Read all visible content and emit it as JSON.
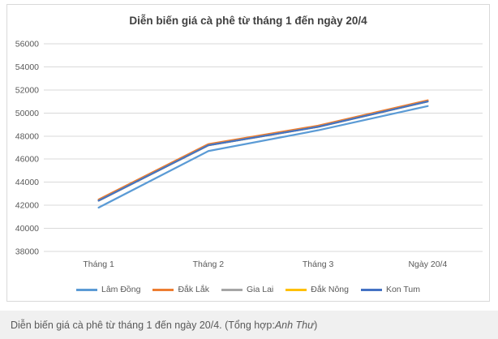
{
  "chart_data": {
    "type": "line",
    "title": "Diễn biến giá cà phê từ tháng 1 đến ngày 20/4",
    "categories": [
      "Tháng 1",
      "Tháng 2",
      "Tháng 3",
      "Ngày 20/4"
    ],
    "series": [
      {
        "name": "Lâm Đồng",
        "color": "#5B9BD5",
        "values": [
          41800,
          46700,
          48500,
          50600
        ]
      },
      {
        "name": "Đắk Lắk",
        "color": "#ED7D31",
        "values": [
          42500,
          47300,
          48900,
          51100
        ]
      },
      {
        "name": "Gia Lai",
        "color": "#A5A5A5",
        "values": [
          42400,
          47200,
          48800,
          51000
        ]
      },
      {
        "name": "Đắk Nông",
        "color": "#FFC000",
        "values": [
          42400,
          47200,
          48800,
          51000
        ]
      },
      {
        "name": "Kon Tum",
        "color": "#4472C4",
        "values": [
          42400,
          47200,
          48800,
          51000
        ]
      }
    ],
    "ylim": [
      38000,
      56000
    ],
    "ytick_step": 2000,
    "grid": true,
    "legend_position": "bottom"
  },
  "theme": {
    "gridline_color": "#d9d9d9",
    "axis_text_color": "#595959",
    "title_color": "#404040",
    "caption_bg": "#f0f0f0"
  },
  "caption": {
    "text": "Diễn biến giá cà phê từ tháng 1 đến ngày 20/4. (Tổng hợp: ",
    "author": "Anh Thư",
    "suffix": ")"
  }
}
